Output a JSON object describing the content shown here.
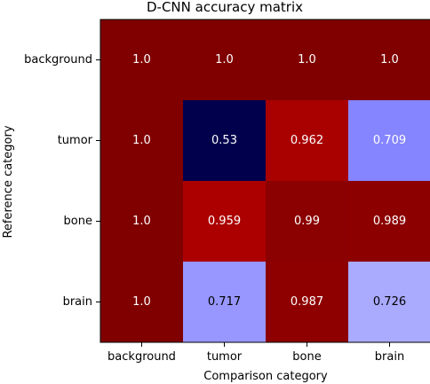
{
  "chart_data": {
    "type": "heatmap",
    "title": "D-CNN accuracy matrix",
    "xlabel": "Comparison category",
    "ylabel": "Reference category",
    "x_categories": [
      "background",
      "tumor",
      "bone",
      "brain"
    ],
    "y_categories": [
      "background",
      "tumor",
      "bone",
      "brain"
    ],
    "values": [
      [
        "1.0",
        "1.0",
        "1.0",
        "1.0"
      ],
      [
        "1.0",
        "0.53",
        "0.962",
        "0.709"
      ],
      [
        "1.0",
        "0.959",
        "0.99",
        "0.989"
      ],
      [
        "1.0",
        "0.717",
        "0.987",
        "0.726"
      ]
    ],
    "colormap": "seismic",
    "vmin": 0.53,
    "vmax": 1.0,
    "grid": false
  }
}
